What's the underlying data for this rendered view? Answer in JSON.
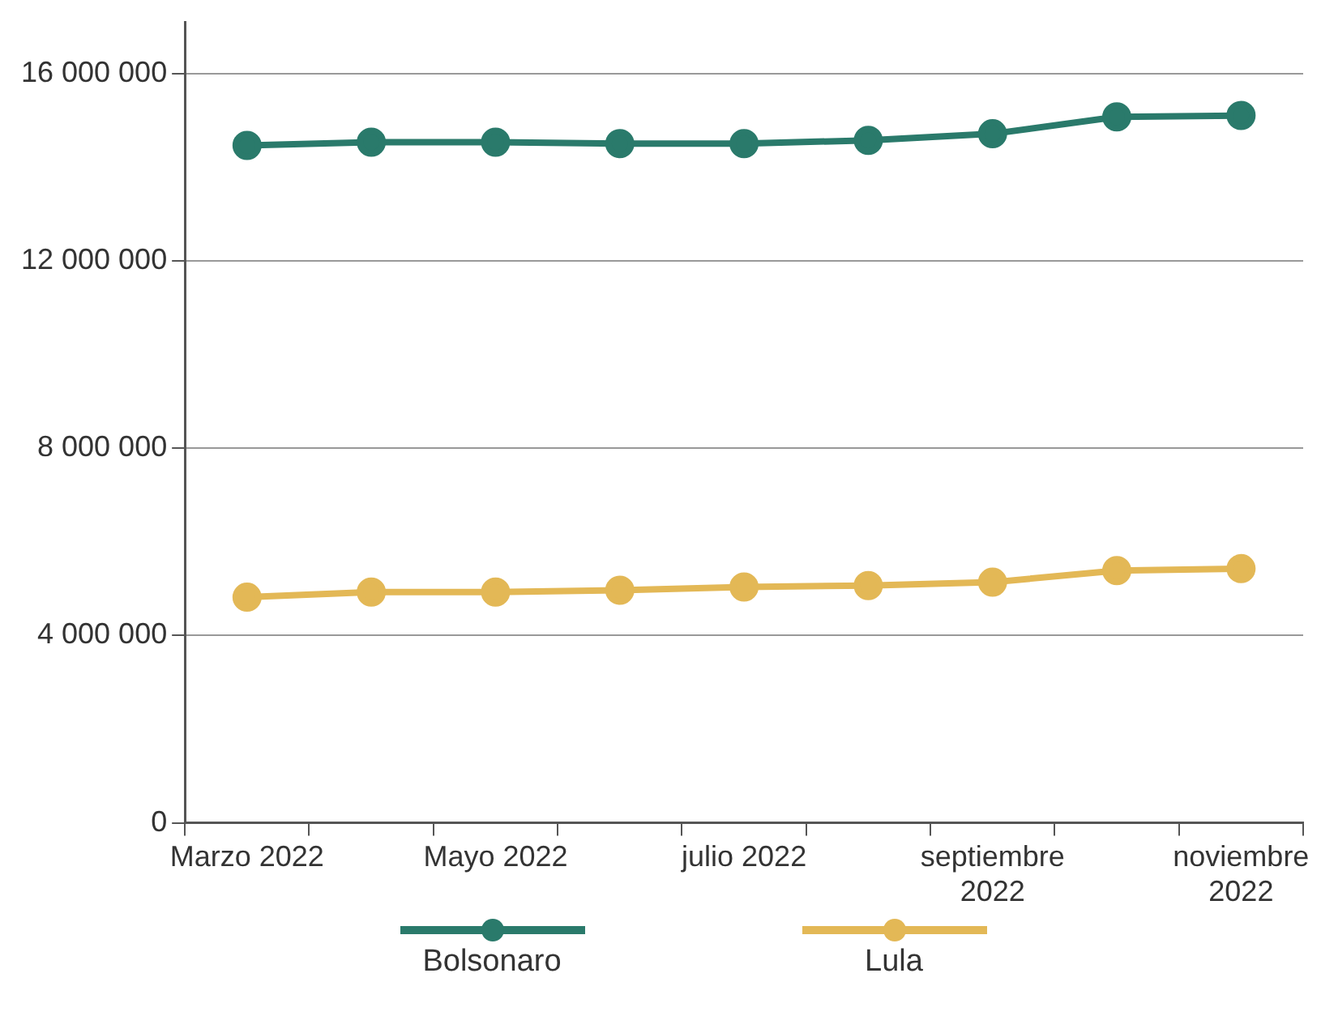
{
  "chart_data": {
    "type": "line",
    "categories": [
      "Marzo 2022",
      null,
      "Mayo 2022",
      null,
      "julio 2022",
      null,
      "septiembre 2022",
      null,
      "noviembre 2022"
    ],
    "series": [
      {
        "name": "Bolsonaro",
        "color": "#2a7a6b",
        "values": [
          14470000,
          14540000,
          14540000,
          14510000,
          14510000,
          14580000,
          14720000,
          15080000,
          15110000
        ]
      },
      {
        "name": "Lula",
        "color": "#e3b856",
        "values": [
          4820000,
          4930000,
          4930000,
          4970000,
          5040000,
          5070000,
          5140000,
          5390000,
          5430000
        ]
      }
    ],
    "ylim": [
      0,
      17100000
    ],
    "yticks": [
      {
        "value": 0,
        "label": "0"
      },
      {
        "value": 4000000,
        "label": "4 000 000"
      },
      {
        "value": 8000000,
        "label": "8 000 000"
      },
      {
        "value": 12000000,
        "label": "12 000 000"
      },
      {
        "value": 16000000,
        "label": "16 000 000"
      }
    ],
    "grid": "y",
    "legend": "bottom",
    "marker": "circle",
    "line_style": "solid"
  }
}
